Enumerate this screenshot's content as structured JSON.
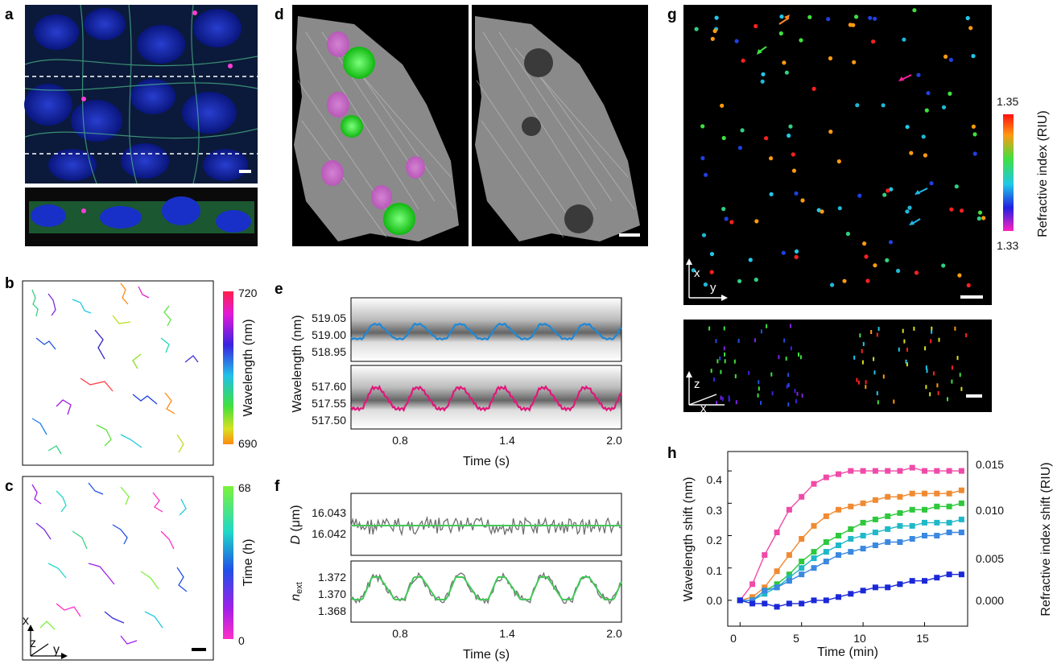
{
  "panels": {
    "a": "a",
    "b": "b",
    "c": "c",
    "d": "d",
    "e": "e",
    "f": "f",
    "g": "g",
    "h": "h"
  },
  "panel_b": {
    "colorbar_label": "Wavelength (nm)",
    "cb_max": "720",
    "cb_min": "690"
  },
  "panel_c": {
    "colorbar_label": "Time (h)",
    "cb_max": "68",
    "cb_min": "0",
    "axis_x": "x",
    "axis_y": "y",
    "axis_z": "z"
  },
  "panel_e": {
    "ylabel": "Wavelength (nm)",
    "xlabel": "Time (s)",
    "top_ticks": [
      "519.05",
      "519.00",
      "518.95"
    ],
    "bottom_ticks": [
      "517.60",
      "517.55",
      "517.50"
    ],
    "x_ticks": [
      "0.8",
      "1.4",
      "2.0"
    ],
    "colors": {
      "top": "#1e88d6",
      "bottom": "#e0177a"
    }
  },
  "panel_f": {
    "top_ylabel": "D (μm)",
    "top_ylabel_main": "D",
    "top_ylabel_unit": " (μm)",
    "top_ticks": [
      "16.043",
      "16.042"
    ],
    "bottom_ylabel_main": "n",
    "bottom_ylabel_sub": "ext",
    "bottom_ticks": [
      "1.372",
      "1.370",
      "1.368"
    ],
    "x_ticks": [
      "0.8",
      "1.4",
      "2.0"
    ],
    "xlabel": "Time (s)",
    "colors": {
      "raw": "#6e6e6e",
      "fit": "#44c85a"
    }
  },
  "panel_g": {
    "colorbar_label": "Refractive index (RIU)",
    "cb_max": "1.35",
    "cb_min": "1.33",
    "axis_x": "x",
    "axis_y": "y",
    "axis_z": "z"
  },
  "chart_data": {
    "type": "scatter",
    "xlabel": "Time (min)",
    "ylabel": "Wavelength shift (nm)",
    "y2label": "Refractive index shift (RIU)",
    "xlim": [
      -1,
      18.5
    ],
    "ylim": [
      -0.08,
      0.46
    ],
    "x_ticks": [
      "0",
      "5",
      "10",
      "15"
    ],
    "y_ticks": [
      "0.0",
      "0.1",
      "0.2",
      "0.3",
      "0.4"
    ],
    "y2_ticks": [
      "0.000",
      "0.005",
      "0.010",
      "0.015"
    ],
    "series": [
      {
        "color": "#f04aa8",
        "x": [
          0,
          1,
          2,
          3,
          4,
          5,
          6,
          7,
          8,
          9,
          10,
          11,
          12,
          13,
          14,
          15,
          16,
          17,
          18
        ],
        "y": [
          0,
          0.05,
          0.14,
          0.21,
          0.28,
          0.32,
          0.36,
          0.38,
          0.39,
          0.4,
          0.4,
          0.4,
          0.4,
          0.4,
          0.41,
          0.4,
          0.4,
          0.4,
          0.4
        ]
      },
      {
        "color": "#f08a32",
        "x": [
          0,
          1,
          2,
          3,
          4,
          5,
          6,
          7,
          8,
          9,
          10,
          11,
          12,
          13,
          14,
          15,
          16,
          17,
          18
        ],
        "y": [
          0,
          0.01,
          0.04,
          0.09,
          0.14,
          0.19,
          0.23,
          0.26,
          0.28,
          0.29,
          0.3,
          0.31,
          0.32,
          0.32,
          0.33,
          0.33,
          0.33,
          0.33,
          0.34
        ]
      },
      {
        "color": "#2ec83c",
        "x": [
          0,
          1,
          2,
          3,
          4,
          5,
          6,
          7,
          8,
          9,
          10,
          11,
          12,
          13,
          14,
          15,
          16,
          17,
          18
        ],
        "y": [
          0,
          0.0,
          0.03,
          0.05,
          0.08,
          0.12,
          0.15,
          0.18,
          0.2,
          0.22,
          0.24,
          0.25,
          0.26,
          0.27,
          0.28,
          0.28,
          0.29,
          0.29,
          0.3
        ]
      },
      {
        "color": "#20b8c8",
        "x": [
          0,
          1,
          2,
          3,
          4,
          5,
          6,
          7,
          8,
          9,
          10,
          11,
          12,
          13,
          14,
          15,
          16,
          17,
          18
        ],
        "y": [
          0,
          0.0,
          0.02,
          0.04,
          0.07,
          0.1,
          0.13,
          0.15,
          0.17,
          0.19,
          0.2,
          0.21,
          0.22,
          0.23,
          0.23,
          0.24,
          0.24,
          0.24,
          0.25
        ]
      },
      {
        "color": "#3a88e0",
        "x": [
          0,
          1,
          2,
          3,
          4,
          5,
          6,
          7,
          8,
          9,
          10,
          11,
          12,
          13,
          14,
          15,
          16,
          17,
          18
        ],
        "y": [
          0,
          0.0,
          0.03,
          0.04,
          0.06,
          0.08,
          0.1,
          0.12,
          0.14,
          0.15,
          0.16,
          0.17,
          0.18,
          0.18,
          0.19,
          0.2,
          0.2,
          0.21,
          0.21
        ]
      },
      {
        "color": "#1a28d8",
        "x": [
          0,
          1,
          2,
          3,
          4,
          5,
          6,
          7,
          8,
          9,
          10,
          11,
          12,
          13,
          14,
          15,
          16,
          17,
          18
        ],
        "y": [
          0,
          -0.01,
          -0.01,
          -0.02,
          -0.01,
          -0.01,
          0.0,
          0.0,
          0.01,
          0.02,
          0.03,
          0.04,
          0.04,
          0.05,
          0.06,
          0.06,
          0.07,
          0.08,
          0.08
        ]
      }
    ]
  }
}
